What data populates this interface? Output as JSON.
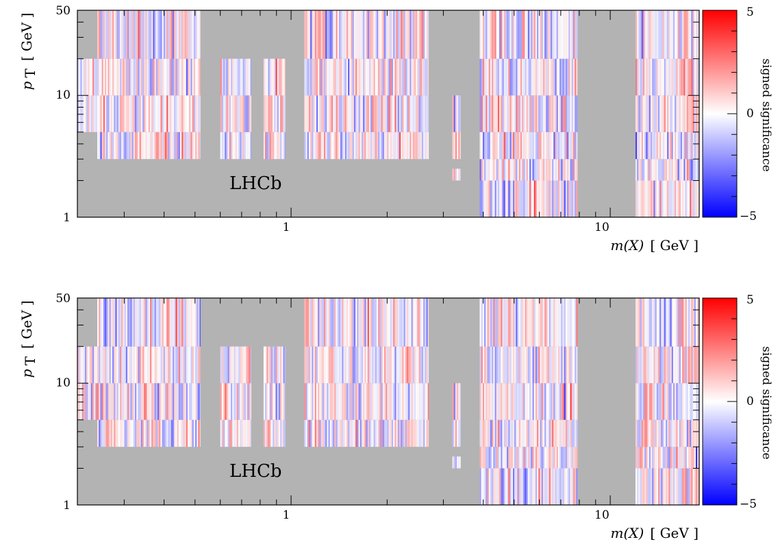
{
  "figure": {
    "panels": [
      {
        "id": "top",
        "xlabel_var": "m(X)",
        "xlabel_unit": "[ GeV ]",
        "ylabel_var": "p",
        "ylabel_sub": "T",
        "ylabel_unit": "[ GeV ]",
        "experiment_label": "LHCb",
        "colorbar_label": "signed significance",
        "colorbar_ticks": [
          "5",
          "0",
          "−5"
        ],
        "xticks": [
          "1",
          "10"
        ],
        "yticks": [
          "50",
          "10",
          "1"
        ]
      },
      {
        "id": "bottom",
        "xlabel_var": "m(X)",
        "xlabel_unit": "[ GeV ]",
        "ylabel_var": "p",
        "ylabel_sub": "T",
        "ylabel_unit": "[ GeV ]",
        "experiment_label": "LHCb",
        "colorbar_label": "signed significance",
        "colorbar_ticks": [
          "5",
          "0",
          "−5"
        ],
        "xticks": [
          "1",
          "10"
        ],
        "yticks": [
          "50",
          "10",
          "1"
        ]
      }
    ]
  },
  "chart_data": [
    {
      "type": "heatmap",
      "xlabel": "m(X) [ GeV ]",
      "ylabel": "p_T [ GeV ]",
      "xscale": "log",
      "yscale": "log",
      "xlim": [
        0.214,
        19.0
      ],
      "ylim": [
        1,
        50
      ],
      "zlim": [
        -5,
        5
      ],
      "colormap": {
        "low": "#0000ff",
        "mid": "#ffffff",
        "high": "#ff0000"
      },
      "missing_color": "#b3b3b3",
      "colorbar_label": "signed significance",
      "annotation": "LHCb",
      "pt_bins": [
        [
          3,
          5
        ],
        [
          5,
          10
        ],
        [
          10,
          20
        ],
        [
          20,
          50
        ]
      ],
      "mass_windows": [
        {
          "m_range": [
            0.214,
            0.247
          ],
          "pt_bins": [
            [
              5,
              10
            ],
            [
              10,
              20
            ]
          ]
        },
        {
          "m_range": [
            0.247,
            0.52
          ],
          "pt_bins": [
            [
              3,
              5
            ],
            [
              5,
              10
            ],
            [
              10,
              20
            ],
            [
              20,
              50
            ]
          ]
        },
        {
          "m_range": [
            0.6,
            0.75
          ],
          "pt_bins": [
            [
              3,
              5
            ],
            [
              5,
              10
            ],
            [
              10,
              20
            ]
          ]
        },
        {
          "m_range": [
            0.82,
            0.96
          ],
          "pt_bins": [
            [
              3,
              5
            ],
            [
              5,
              10
            ],
            [
              10,
              20
            ]
          ]
        },
        {
          "m_range": [
            1.1,
            2.7
          ],
          "pt_bins": [
            [
              3,
              5
            ],
            [
              5,
              10
            ],
            [
              10,
              20
            ],
            [
              20,
              50
            ]
          ]
        },
        {
          "m_range": [
            3.2,
            3.4
          ],
          "pt_bins": [
            [
              2,
              2.5
            ],
            [
              3,
              5
            ],
            [
              5,
              10
            ]
          ]
        },
        {
          "m_range": [
            3.9,
            7.9
          ],
          "pt_bins": [
            [
              1,
              2
            ],
            [
              2,
              3
            ],
            [
              3,
              5
            ],
            [
              5,
              10
            ],
            [
              10,
              20
            ],
            [
              20,
              50
            ]
          ]
        },
        {
          "m_range": [
            12.0,
            19.0
          ],
          "pt_bins": [
            [
              1,
              2
            ],
            [
              2,
              3
            ],
            [
              3,
              5
            ],
            [
              5,
              10
            ],
            [
              10,
              20
            ],
            [
              20,
              50
            ]
          ]
        }
      ],
      "values_note": "",
      "seed": 11
    },
    {
      "type": "heatmap",
      "xlabel": "m(X) [ GeV ]",
      "ylabel": "p_T [ GeV ]",
      "xscale": "log",
      "yscale": "log",
      "xlim": [
        0.214,
        19.0
      ],
      "ylim": [
        1,
        50
      ],
      "zlim": [
        -5,
        5
      ],
      "colormap": {
        "low": "#0000ff",
        "mid": "#ffffff",
        "high": "#ff0000"
      },
      "missing_color": "#b3b3b3",
      "colorbar_label": "signed significance",
      "annotation": "LHCb",
      "pt_bins": [
        [
          3,
          5
        ],
        [
          5,
          10
        ],
        [
          10,
          20
        ],
        [
          20,
          50
        ]
      ],
      "mass_windows": [
        {
          "m_range": [
            0.214,
            0.247
          ],
          "pt_bins": [
            [
              5,
              10
            ],
            [
              10,
              20
            ]
          ]
        },
        {
          "m_range": [
            0.247,
            0.52
          ],
          "pt_bins": [
            [
              3,
              5
            ],
            [
              5,
              10
            ],
            [
              10,
              20
            ],
            [
              20,
              50
            ]
          ]
        },
        {
          "m_range": [
            0.6,
            0.75
          ],
          "pt_bins": [
            [
              3,
              5
            ],
            [
              5,
              10
            ],
            [
              10,
              20
            ]
          ]
        },
        {
          "m_range": [
            0.82,
            0.96
          ],
          "pt_bins": [
            [
              3,
              5
            ],
            [
              5,
              10
            ],
            [
              10,
              20
            ]
          ]
        },
        {
          "m_range": [
            1.1,
            2.7
          ],
          "pt_bins": [
            [
              3,
              5
            ],
            [
              5,
              10
            ],
            [
              10,
              20
            ],
            [
              20,
              50
            ]
          ]
        },
        {
          "m_range": [
            3.2,
            3.4
          ],
          "pt_bins": [
            [
              2,
              2.5
            ],
            [
              3,
              5
            ],
            [
              5,
              10
            ]
          ]
        },
        {
          "m_range": [
            3.9,
            7.9
          ],
          "pt_bins": [
            [
              1,
              2
            ],
            [
              2,
              3
            ],
            [
              3,
              5
            ],
            [
              5,
              10
            ],
            [
              10,
              20
            ],
            [
              20,
              50
            ]
          ]
        },
        {
          "m_range": [
            12.0,
            19.0
          ],
          "pt_bins": [
            [
              1,
              2
            ],
            [
              2,
              3
            ],
            [
              3,
              5
            ],
            [
              5,
              10
            ],
            [
              10,
              20
            ],
            [
              20,
              50
            ]
          ]
        }
      ],
      "values_note": "",
      "seed": 29
    }
  ]
}
